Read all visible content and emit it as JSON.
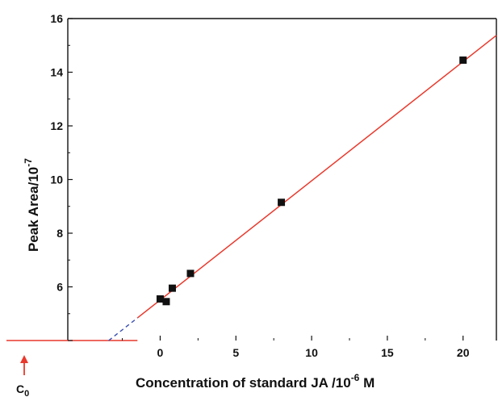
{
  "chart_data": {
    "type": "scatter",
    "xlabel_main": "Concentration of standard JA /10",
    "xlabel_sup": "-6",
    "xlabel_unit": " M",
    "ylabel_main": "Peak Area/10",
    "ylabel_sup": "-7",
    "xlim": [
      -6.1,
      22.2
    ],
    "ylim": [
      4.0,
      16.0
    ],
    "x_ticks": [
      0,
      5,
      10,
      15,
      20
    ],
    "y_ticks": [
      4,
      6,
      8,
      10,
      12,
      14,
      16
    ],
    "y_tick_labels": [
      "6",
      "8",
      "10",
      "12",
      "14",
      "16"
    ],
    "points": [
      {
        "x": 0.0,
        "y": 5.55
      },
      {
        "x": 0.4,
        "y": 5.45
      },
      {
        "x": 0.8,
        "y": 5.95
      },
      {
        "x": 2.0,
        "y": 6.5
      },
      {
        "x": 8.0,
        "y": 9.15
      },
      {
        "x": 20.0,
        "y": 14.45
      }
    ],
    "fit_line": {
      "x_start": -3.4,
      "x_end": 22.2,
      "slope": 0.4443,
      "intercept": 5.51,
      "color": "#e8392c"
    },
    "extrapolation": {
      "x_start": -3.4,
      "x_end": -1.5,
      "color": "#3a4fb0"
    },
    "c0_marker": {
      "label": "C",
      "sub": "0",
      "x": -3.4,
      "color": "#e8392c"
    },
    "grid": false,
    "legend": "none"
  }
}
